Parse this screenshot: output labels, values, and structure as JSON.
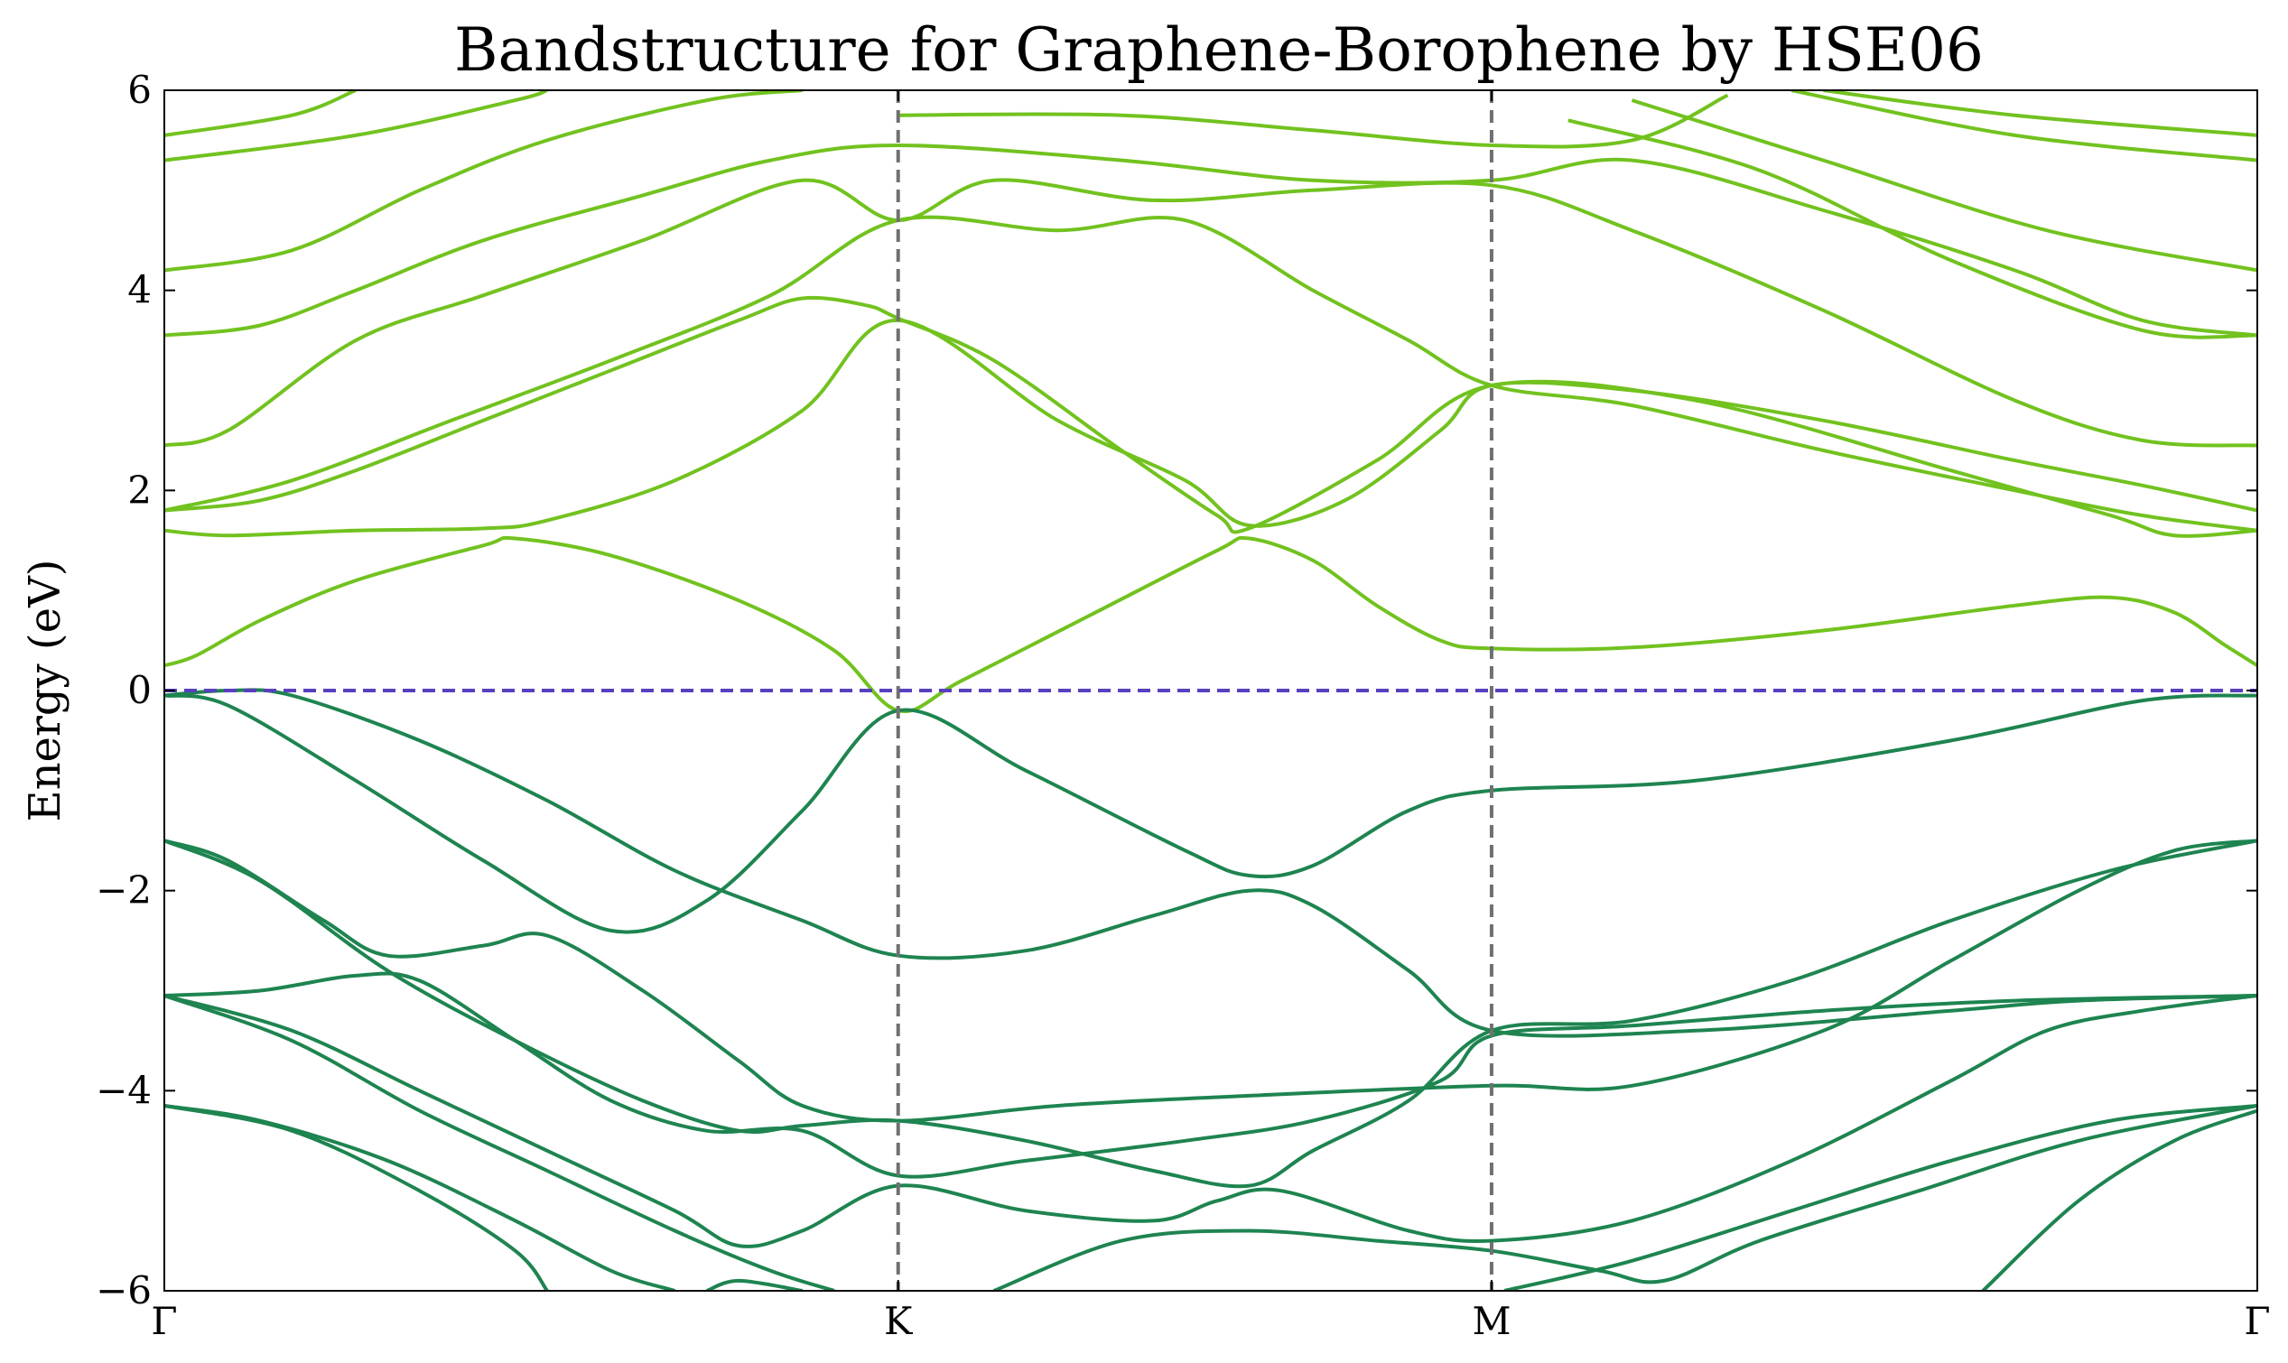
{
  "chart_data": {
    "type": "line",
    "title": "Bandstructure for Graphene-Borophene by HSE06",
    "xlabel": "",
    "ylabel": "Energy (eV)",
    "ylim": [
      -6,
      6
    ],
    "xlim": [
      0,
      3.28
    ],
    "x_ticks": [
      {
        "label": "Γ",
        "x": 0
      },
      {
        "label": "K",
        "x": 1.15
      },
      {
        "label": "M",
        "x": 2.08
      },
      {
        "label": "Γ",
        "x": 3.28
      }
    ],
    "y_ticks": [
      {
        "label": "6",
        "y": 6
      },
      {
        "label": "4",
        "y": 4
      },
      {
        "label": "2",
        "y": 2
      },
      {
        "label": "0",
        "y": 0
      },
      {
        "label": "−2",
        "y": -2
      },
      {
        "label": "−4",
        "y": -4
      },
      {
        "label": "−6",
        "y": -6
      }
    ],
    "fermi_level": {
      "y": 0,
      "color": "#5a3fbf"
    },
    "symmetry_lines": [
      1.15,
      2.08
    ],
    "symmetry_line_color": "#707070",
    "conduction_color": "#72c21f",
    "valence_color": "#1e8450",
    "conduction_bands": [
      [
        [
          0,
          0.25
        ],
        [
          0.05,
          0.35
        ],
        [
          0.15,
          0.7
        ],
        [
          0.3,
          1.1
        ],
        [
          0.5,
          1.45
        ],
        [
          0.55,
          1.52
        ],
        [
          0.7,
          1.35
        ],
        [
          0.9,
          0.9
        ],
        [
          1.05,
          0.4
        ],
        [
          1.15,
          -0.2
        ],
        [
          1.25,
          0.1
        ],
        [
          1.45,
          0.75
        ],
        [
          1.65,
          1.4
        ],
        [
          1.7,
          1.52
        ],
        [
          1.8,
          1.3
        ],
        [
          1.9,
          0.85
        ],
        [
          2.0,
          0.5
        ],
        [
          2.08,
          0.42
        ],
        [
          2.3,
          0.43
        ],
        [
          2.6,
          0.6
        ],
        [
          2.9,
          0.85
        ],
        [
          3.05,
          0.93
        ],
        [
          3.15,
          0.78
        ],
        [
          3.23,
          0.45
        ],
        [
          3.28,
          0.25
        ]
      ],
      [
        [
          0,
          1.6
        ],
        [
          0.1,
          1.55
        ],
        [
          0.3,
          1.6
        ],
        [
          0.5,
          1.62
        ],
        [
          0.6,
          1.7
        ],
        [
          0.8,
          2.1
        ],
        [
          1.0,
          2.8
        ],
        [
          1.15,
          3.7
        ],
        [
          1.4,
          2.7
        ],
        [
          1.6,
          2.1
        ],
        [
          1.7,
          1.65
        ],
        [
          1.85,
          1.9
        ],
        [
          2.0,
          2.6
        ],
        [
          2.08,
          3.05
        ],
        [
          2.3,
          3.0
        ],
        [
          2.6,
          2.7
        ],
        [
          2.9,
          2.3
        ],
        [
          3.1,
          2.05
        ],
        [
          3.28,
          1.8
        ]
      ],
      [
        [
          0,
          1.8
        ],
        [
          0.15,
          1.9
        ],
        [
          0.3,
          2.2
        ],
        [
          0.5,
          2.7
        ],
        [
          0.7,
          3.2
        ],
        [
          0.9,
          3.7
        ],
        [
          1.0,
          3.92
        ],
        [
          1.1,
          3.85
        ],
        [
          1.15,
          3.72
        ],
        [
          1.3,
          3.3
        ],
        [
          1.5,
          2.4
        ],
        [
          1.65,
          1.75
        ],
        [
          1.7,
          1.62
        ],
        [
          1.9,
          2.3
        ],
        [
          2.08,
          3.05
        ],
        [
          2.4,
          2.9
        ],
        [
          2.8,
          2.2
        ],
        [
          3.05,
          1.75
        ],
        [
          3.15,
          1.55
        ],
        [
          3.28,
          1.6
        ]
      ],
      [
        [
          0,
          1.8
        ],
        [
          0.2,
          2.1
        ],
        [
          0.45,
          2.7
        ],
        [
          0.7,
          3.3
        ],
        [
          0.95,
          3.95
        ],
        [
          1.15,
          4.7
        ],
        [
          1.4,
          4.6
        ],
        [
          1.6,
          4.7
        ],
        [
          1.8,
          4.0
        ],
        [
          1.95,
          3.5
        ],
        [
          2.08,
          3.05
        ],
        [
          2.3,
          2.85
        ],
        [
          2.6,
          2.4
        ],
        [
          2.9,
          2.0
        ],
        [
          3.1,
          1.75
        ],
        [
          3.28,
          1.6
        ]
      ],
      [
        [
          0,
          2.45
        ],
        [
          0.1,
          2.6
        ],
        [
          0.3,
          3.5
        ],
        [
          0.5,
          3.95
        ],
        [
          0.75,
          4.5
        ],
        [
          1.0,
          5.1
        ],
        [
          1.15,
          4.7
        ],
        [
          1.3,
          5.1
        ],
        [
          1.55,
          4.9
        ],
        [
          1.8,
          5.0
        ],
        [
          2.08,
          5.05
        ],
        [
          2.3,
          4.6
        ],
        [
          2.6,
          3.8
        ],
        [
          2.9,
          2.9
        ],
        [
          3.1,
          2.5
        ],
        [
          3.28,
          2.45
        ]
      ],
      [
        [
          0,
          3.55
        ],
        [
          0.15,
          3.65
        ],
        [
          0.3,
          4.0
        ],
        [
          0.5,
          4.5
        ],
        [
          0.75,
          4.95
        ],
        [
          0.95,
          5.3
        ],
        [
          1.15,
          5.45
        ],
        [
          1.5,
          5.3
        ],
        [
          1.8,
          5.1
        ],
        [
          2.08,
          5.1
        ],
        [
          2.3,
          5.3
        ],
        [
          2.6,
          4.8
        ],
        [
          2.9,
          4.2
        ],
        [
          3.1,
          3.7
        ],
        [
          3.28,
          3.55
        ]
      ],
      [
        [
          0,
          4.2
        ],
        [
          0.2,
          4.4
        ],
        [
          0.4,
          5.0
        ],
        [
          0.6,
          5.5
        ],
        [
          0.85,
          5.9
        ],
        [
          1.0,
          6.0
        ]
      ],
      [
        [
          0,
          5.3
        ],
        [
          0.3,
          5.55
        ],
        [
          0.55,
          5.9
        ],
        [
          0.6,
          6.0
        ]
      ],
      [
        [
          0,
          5.55
        ],
        [
          0.2,
          5.75
        ],
        [
          0.3,
          6.0
        ]
      ],
      [
        [
          1.15,
          5.75
        ],
        [
          1.5,
          5.75
        ],
        [
          1.8,
          5.6
        ],
        [
          2.08,
          5.45
        ],
        [
          2.3,
          5.5
        ],
        [
          2.45,
          5.95
        ]
      ],
      [
        [
          2.6,
          6.0
        ],
        [
          2.9,
          5.75
        ],
        [
          3.28,
          5.55
        ]
      ],
      [
        [
          2.55,
          6.0
        ],
        [
          2.9,
          5.55
        ],
        [
          3.28,
          5.3
        ]
      ],
      [
        [
          2.3,
          5.9
        ],
        [
          2.6,
          5.3
        ],
        [
          2.95,
          4.6
        ],
        [
          3.28,
          4.2
        ]
      ],
      [
        [
          2.2,
          5.7
        ],
        [
          2.5,
          5.2
        ],
        [
          2.8,
          4.3
        ],
        [
          3.1,
          3.6
        ],
        [
          3.28,
          3.55
        ]
      ]
    ],
    "valence_bands": [
      [
        [
          0,
          -0.05
        ],
        [
          0.1,
          0
        ],
        [
          0.2,
          -0.05
        ],
        [
          0.4,
          -0.5
        ],
        [
          0.6,
          -1.1
        ],
        [
          0.8,
          -1.8
        ],
        [
          1.0,
          -2.3
        ],
        [
          1.15,
          -2.65
        ],
        [
          1.35,
          -2.6
        ],
        [
          1.55,
          -2.25
        ],
        [
          1.7,
          -2.0
        ],
        [
          1.8,
          -2.15
        ],
        [
          1.95,
          -2.8
        ],
        [
          2.08,
          -3.4
        ],
        [
          2.4,
          -3.4
        ],
        [
          2.8,
          -3.2
        ],
        [
          3.0,
          -3.1
        ],
        [
          3.28,
          -3.05
        ]
      ],
      [
        [
          0,
          -0.05
        ],
        [
          0.1,
          -0.15
        ],
        [
          0.3,
          -0.9
        ],
        [
          0.5,
          -1.7
        ],
        [
          0.7,
          -2.4
        ],
        [
          0.85,
          -2.1
        ],
        [
          1.0,
          -1.2
        ],
        [
          1.15,
          -0.2
        ],
        [
          1.35,
          -0.8
        ],
        [
          1.6,
          -1.6
        ],
        [
          1.7,
          -1.85
        ],
        [
          1.8,
          -1.75
        ],
        [
          1.95,
          -1.2
        ],
        [
          2.08,
          -1.0
        ],
        [
          2.4,
          -0.9
        ],
        [
          2.8,
          -0.5
        ],
        [
          3.1,
          -0.1
        ],
        [
          3.28,
          -0.05
        ]
      ],
      [
        [
          0,
          -1.5
        ],
        [
          0.1,
          -1.7
        ],
        [
          0.25,
          -2.3
        ],
        [
          0.35,
          -2.65
        ],
        [
          0.5,
          -2.55
        ],
        [
          0.6,
          -2.45
        ],
        [
          0.75,
          -3.0
        ],
        [
          0.9,
          -3.7
        ],
        [
          1.0,
          -4.15
        ],
        [
          1.15,
          -4.3
        ],
        [
          1.4,
          -4.15
        ],
        [
          1.7,
          -4.05
        ],
        [
          2.08,
          -3.95
        ],
        [
          2.3,
          -3.95
        ],
        [
          2.6,
          -3.4
        ],
        [
          2.8,
          -2.7
        ],
        [
          3.0,
          -2.0
        ],
        [
          3.15,
          -1.6
        ],
        [
          3.28,
          -1.5
        ]
      ],
      [
        [
          0,
          -1.5
        ],
        [
          0.15,
          -1.9
        ],
        [
          0.35,
          -2.8
        ],
        [
          0.55,
          -3.5
        ],
        [
          0.75,
          -4.1
        ],
        [
          0.9,
          -4.4
        ],
        [
          1.0,
          -4.35
        ],
        [
          1.15,
          -4.3
        ],
        [
          1.35,
          -4.5
        ],
        [
          1.55,
          -4.8
        ],
        [
          1.7,
          -4.95
        ],
        [
          1.8,
          -4.6
        ],
        [
          1.95,
          -4.1
        ],
        [
          2.08,
          -3.4
        ],
        [
          2.3,
          -3.3
        ],
        [
          2.55,
          -2.9
        ],
        [
          2.8,
          -2.3
        ],
        [
          3.05,
          -1.8
        ],
        [
          3.28,
          -1.5
        ]
      ],
      [
        [
          0,
          -3.05
        ],
        [
          0.15,
          -3.0
        ],
        [
          0.3,
          -2.85
        ],
        [
          0.4,
          -2.9
        ],
        [
          0.55,
          -3.5
        ],
        [
          0.7,
          -4.1
        ],
        [
          0.85,
          -4.4
        ],
        [
          1.0,
          -4.4
        ],
        [
          1.15,
          -4.85
        ],
        [
          1.35,
          -4.7
        ],
        [
          1.6,
          -4.5
        ],
        [
          1.8,
          -4.3
        ],
        [
          2.0,
          -3.9
        ],
        [
          2.08,
          -3.45
        ],
        [
          2.3,
          -3.35
        ],
        [
          2.6,
          -3.2
        ],
        [
          2.9,
          -3.1
        ],
        [
          3.28,
          -3.05
        ]
      ],
      [
        [
          0,
          -3.05
        ],
        [
          0.2,
          -3.4
        ],
        [
          0.4,
          -4.0
        ],
        [
          0.6,
          -4.6
        ],
        [
          0.8,
          -5.2
        ],
        [
          0.9,
          -5.55
        ],
        [
          1.0,
          -5.4
        ],
        [
          1.15,
          -4.95
        ],
        [
          1.35,
          -5.2
        ],
        [
          1.55,
          -5.3
        ],
        [
          1.65,
          -5.1
        ],
        [
          1.75,
          -5.0
        ],
        [
          1.95,
          -5.4
        ],
        [
          2.08,
          -5.5
        ],
        [
          2.3,
          -5.3
        ],
        [
          2.55,
          -4.7
        ],
        [
          2.8,
          -3.9
        ],
        [
          2.95,
          -3.4
        ],
        [
          3.1,
          -3.2
        ],
        [
          3.28,
          -3.05
        ]
      ],
      [
        [
          0,
          -3.05
        ],
        [
          0.2,
          -3.5
        ],
        [
          0.4,
          -4.2
        ],
        [
          0.6,
          -4.8
        ],
        [
          0.8,
          -5.4
        ],
        [
          0.95,
          -5.8
        ],
        [
          1.05,
          -6.0
        ]
      ],
      [
        [
          0,
          -4.15
        ],
        [
          0.15,
          -4.3
        ],
        [
          0.35,
          -4.7
        ],
        [
          0.55,
          -5.3
        ],
        [
          0.7,
          -5.8
        ],
        [
          0.8,
          -6.0
        ]
      ],
      [
        [
          0,
          -4.15
        ],
        [
          0.2,
          -4.4
        ],
        [
          0.4,
          -5.0
        ],
        [
          0.55,
          -5.6
        ],
        [
          0.6,
          -6.0
        ]
      ],
      [
        [
          0.85,
          -6.0
        ],
        [
          0.9,
          -5.9
        ],
        [
          1.0,
          -6.0
        ]
      ],
      [
        [
          1.3,
          -6.0
        ],
        [
          1.5,
          -5.5
        ],
        [
          1.7,
          -5.4
        ],
        [
          1.9,
          -5.5
        ],
        [
          2.08,
          -5.6
        ],
        [
          2.25,
          -5.8
        ],
        [
          2.35,
          -5.9
        ],
        [
          2.5,
          -5.5
        ],
        [
          2.75,
          -5.0
        ],
        [
          3.0,
          -4.5
        ],
        [
          3.28,
          -4.15
        ]
      ],
      [
        [
          2.1,
          -6.0
        ],
        [
          2.3,
          -5.7
        ],
        [
          2.55,
          -5.2
        ],
        [
          2.8,
          -4.7
        ],
        [
          3.05,
          -4.3
        ],
        [
          3.28,
          -4.15
        ]
      ],
      [
        [
          2.85,
          -6.0
        ],
        [
          3.0,
          -5.1
        ],
        [
          3.15,
          -4.5
        ],
        [
          3.28,
          -4.2
        ]
      ]
    ]
  }
}
